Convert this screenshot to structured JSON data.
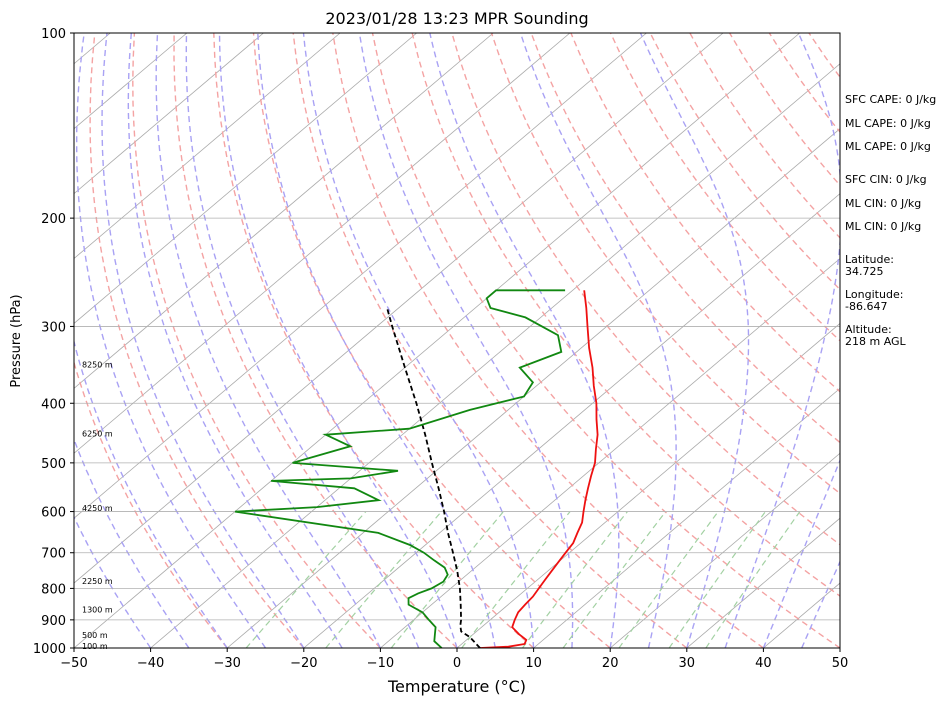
{
  "chart_data": {
    "type": "line",
    "title": "2023/01/28 13:23 MPR Sounding",
    "xlabel": "Temperature (°C)",
    "ylabel": "Pressure (hPa)",
    "xlim": [
      -50,
      50
    ],
    "ylim": [
      1000,
      100
    ],
    "y_scale": "log",
    "x_ticks": [
      "−50",
      "−40",
      "−30",
      "−20",
      "−10",
      "0",
      "10",
      "20",
      "30",
      "40",
      "50"
    ],
    "x_tick_values": [
      -50,
      -40,
      -30,
      -20,
      -10,
      0,
      10,
      20,
      30,
      40,
      50
    ],
    "y_ticks": [
      "100",
      "200",
      "300",
      "400",
      "500",
      "600",
      "700",
      "800",
      "900",
      "1000"
    ],
    "y_tick_values": [
      100,
      200,
      300,
      400,
      500,
      600,
      700,
      800,
      900,
      1000
    ],
    "grid": true,
    "series": [
      {
        "color": "#ee1111",
        "style": "solid",
        "points": [
          [
            1000,
            3.0
          ],
          [
            995,
            6.5
          ],
          [
            985,
            8.2
          ],
          [
            970,
            7.8
          ],
          [
            950,
            6.0
          ],
          [
            925,
            4.0
          ],
          [
            900,
            3.2
          ],
          [
            875,
            2.5
          ],
          [
            850,
            2.2
          ],
          [
            825,
            2.0
          ],
          [
            800,
            1.5
          ],
          [
            775,
            1.0
          ],
          [
            750,
            0.5
          ],
          [
            725,
            0.0
          ],
          [
            700,
            -0.5
          ],
          [
            675,
            -1.0
          ],
          [
            650,
            -2.0
          ],
          [
            625,
            -3.0
          ],
          [
            600,
            -4.5
          ],
          [
            575,
            -6.0
          ],
          [
            550,
            -7.5
          ],
          [
            525,
            -9.0
          ],
          [
            500,
            -10.5
          ],
          [
            475,
            -12.5
          ],
          [
            450,
            -14.5
          ],
          [
            425,
            -17.0
          ],
          [
            400,
            -19.5
          ],
          [
            375,
            -22.5
          ],
          [
            350,
            -25.5
          ],
          [
            325,
            -29.0
          ],
          [
            300,
            -32.5
          ],
          [
            280,
            -35.5
          ],
          [
            262,
            -38.5
          ]
        ]
      },
      {
        "color": "#000000",
        "style": "dashed",
        "points": [
          [
            1000,
            3.0
          ],
          [
            960,
            0.0
          ],
          [
            940,
            -2.0
          ],
          [
            920,
            -3.0
          ],
          [
            900,
            -3.8
          ],
          [
            850,
            -6.2
          ],
          [
            800,
            -8.8
          ],
          [
            750,
            -11.8
          ],
          [
            700,
            -15.2
          ],
          [
            650,
            -18.9
          ],
          [
            600,
            -22.7
          ],
          [
            550,
            -27.0
          ],
          [
            500,
            -31.8
          ],
          [
            450,
            -37.0
          ],
          [
            400,
            -43.0
          ],
          [
            350,
            -50.0
          ],
          [
            300,
            -58.0
          ],
          [
            280,
            -61.5
          ]
        ]
      },
      {
        "color": "#118811",
        "style": "solid",
        "points": [
          [
            1000,
            -2.0
          ],
          [
            975,
            -4.0
          ],
          [
            950,
            -5.0
          ],
          [
            925,
            -6.0
          ],
          [
            900,
            -8.0
          ],
          [
            875,
            -10.0
          ],
          [
            850,
            -13.0
          ],
          [
            830,
            -14.0
          ],
          [
            815,
            -13.5
          ],
          [
            800,
            -12.5
          ],
          [
            780,
            -12.0
          ],
          [
            760,
            -12.5
          ],
          [
            740,
            -14.0
          ],
          [
            720,
            -16.5
          ],
          [
            700,
            -19.0
          ],
          [
            680,
            -22.0
          ],
          [
            650,
            -28.0
          ],
          [
            600,
            -50.0
          ],
          [
            590,
            -40.0
          ],
          [
            575,
            -33.0
          ],
          [
            550,
            -38.0
          ],
          [
            535,
            -50.0
          ],
          [
            530,
            -40.0
          ],
          [
            515,
            -35.0
          ],
          [
            500,
            -50.0
          ],
          [
            470,
            -45.0
          ],
          [
            450,
            -50.0
          ],
          [
            440,
            -40.0
          ],
          [
            410,
            -35.0
          ],
          [
            390,
            -30.0
          ],
          [
            370,
            -31.0
          ],
          [
            350,
            -35.0
          ],
          [
            330,
            -32.0
          ],
          [
            310,
            -35.0
          ],
          [
            290,
            -42.0
          ],
          [
            280,
            -48.0
          ],
          [
            270,
            -50.0
          ],
          [
            262,
            -50.0
          ],
          [
            262,
            -41.0
          ]
        ]
      }
    ],
    "height_labels": [
      {
        "p": 992,
        "text": "100 m"
      },
      {
        "p": 952,
        "text": "500 m"
      },
      {
        "p": 866,
        "text": "1300 m"
      },
      {
        "p": 778,
        "text": "2250 m"
      },
      {
        "p": 592,
        "text": "4250 m"
      },
      {
        "p": 448,
        "text": "6250 m"
      },
      {
        "p": 346,
        "text": "8250 m"
      }
    ],
    "background_lines": {
      "isotherms": "gray solid skewed",
      "dry_adiabats": "red dashed",
      "moist_adiabats": "blue dashed",
      "mixing_ratio": "green dashed"
    },
    "colors": {
      "temperature": "#ee1111",
      "parcel": "#000000",
      "dewpoint": "#118811",
      "isotherm": "#aaaaaa",
      "dry_adiabat": "#f4a3a3",
      "moist_adiabat": "#a9a2f4",
      "mixing_ratio": "#a3d1a3"
    }
  },
  "indices": [
    {
      "label": "SFC CAPE: 0 J/kg"
    },
    {
      "label": "ML CAPE: 0 J/kg"
    },
    {
      "label": "ML CAPE: 0 J/kg"
    },
    {
      "label": "SFC CIN: 0 J/kg"
    },
    {
      "label": "ML CIN: 0 J/kg"
    },
    {
      "label": "ML CIN: 0 J/kg"
    }
  ],
  "location": {
    "latitude_label": "Latitude:",
    "latitude_value": "34.725",
    "longitude_label": "Longitude:",
    "longitude_value": "-86.647",
    "altitude_label": "Altitude:",
    "altitude_value": "218 m AGL"
  }
}
